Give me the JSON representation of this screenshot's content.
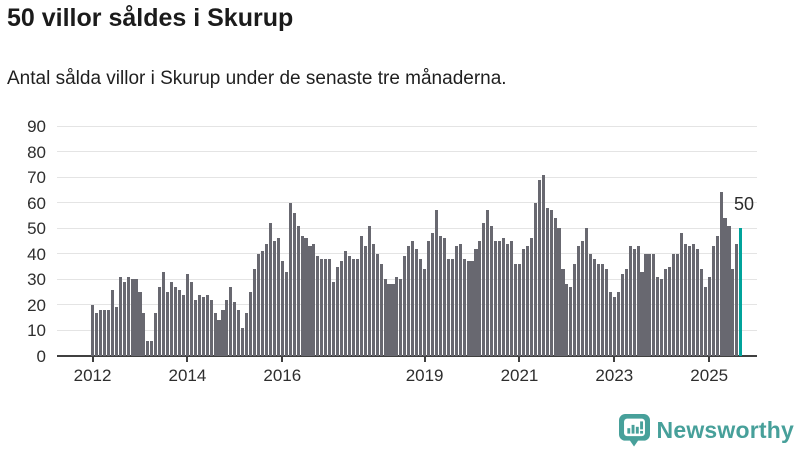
{
  "header": {
    "title": "50 villor såldes i Skurup",
    "subtitle": "Antal sålda villor i Skurup under de senaste tre månaderna."
  },
  "annotation": {
    "label": "50"
  },
  "logo": {
    "text": "Newsworthy",
    "color": "#47a09a"
  },
  "chart_data": {
    "type": "bar",
    "title": "50 villor såldes i Skurup",
    "subtitle": "Antal sålda villor i Skurup under de senaste tre månaderna.",
    "xlabel": "",
    "ylabel": "",
    "unit": "sålda villor (rullande tre månader)",
    "start_year": 2012,
    "start_month": 1,
    "frequency": "monthly",
    "ylim": [
      0,
      90
    ],
    "yticks": [
      0,
      10,
      20,
      30,
      40,
      50,
      60,
      70,
      80,
      90
    ],
    "grid": true,
    "bar_color": "#686870",
    "highlight_color": "#00a39b",
    "highlight_index": 164,
    "highlight_value_label": "50",
    "xticks": [
      {
        "label": "2012",
        "month_index": 0
      },
      {
        "label": "2014",
        "month_index": 24
      },
      {
        "label": "2016",
        "month_index": 48
      },
      {
        "label": "2019",
        "month_index": 84
      },
      {
        "label": "2021",
        "month_index": 108
      },
      {
        "label": "2023",
        "month_index": 132
      },
      {
        "label": "2025",
        "month_index": 156
      }
    ],
    "values": [
      20,
      17,
      18,
      18,
      18,
      26,
      19,
      31,
      29,
      31,
      30,
      30,
      25,
      17,
      6,
      6,
      17,
      27,
      33,
      25,
      29,
      27,
      26,
      24,
      32,
      29,
      22,
      24,
      23,
      24,
      22,
      17,
      14,
      18,
      22,
      27,
      21,
      18,
      11,
      17,
      25,
      34,
      40,
      41,
      44,
      52,
      45,
      46,
      37,
      33,
      60,
      56,
      51,
      47,
      46,
      43,
      44,
      39,
      38,
      38,
      38,
      29,
      35,
      37,
      41,
      39,
      38,
      38,
      47,
      43,
      51,
      44,
      40,
      36,
      30,
      28,
      28,
      31,
      30,
      39,
      43,
      45,
      42,
      38,
      34,
      45,
      48,
      57,
      47,
      46,
      38,
      38,
      43,
      44,
      38,
      37,
      37,
      42,
      45,
      52,
      57,
      51,
      45,
      45,
      46,
      44,
      45,
      36,
      36,
      42,
      43,
      46,
      60,
      69,
      71,
      58,
      57,
      54,
      50,
      34,
      28,
      27,
      36,
      43,
      45,
      50,
      40,
      38,
      36,
      36,
      34,
      25,
      23,
      25,
      32,
      34,
      43,
      42,
      43,
      33,
      40,
      40,
      40,
      31,
      30,
      34,
      35,
      40,
      40,
      48,
      44,
      43,
      44,
      42,
      34,
      27,
      31,
      43,
      47,
      64,
      54,
      51,
      34,
      44,
      50
    ]
  },
  "layout_text": {
    "y_axis_labels": [
      "90",
      "80",
      "70",
      "60",
      "50",
      "40",
      "30",
      "20",
      "10",
      "0"
    ]
  }
}
